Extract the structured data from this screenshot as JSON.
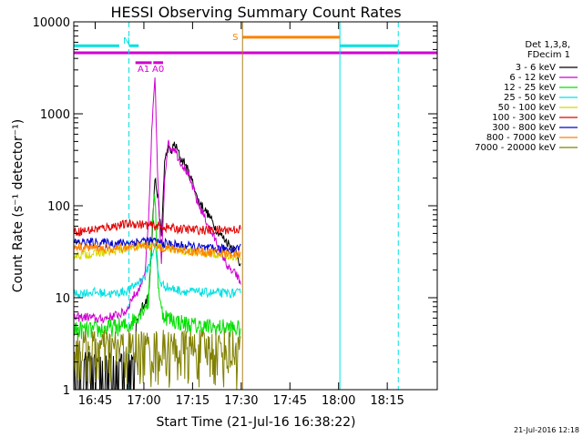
{
  "chart_data": {
    "type": "line",
    "title": "HESSI Observing Summary Count Rates",
    "xlabel": "Start Time (21-Jul-16 16:38:22)",
    "ylabel": "Count Rate (s⁻¹ detector⁻¹)",
    "y_scale": "log",
    "ylim": [
      1,
      10000
    ],
    "xlim_minutes_since_start": [
      0,
      112
    ],
    "grid": false,
    "legend_position": "right",
    "timestamp": "21-Jul-2016 12:18",
    "x_ticks": [
      {
        "label": "16:45",
        "t": 6.6
      },
      {
        "label": "17:00",
        "t": 21.6
      },
      {
        "label": "17:15",
        "t": 36.6
      },
      {
        "label": "17:30",
        "t": 51.6
      },
      {
        "label": "17:45",
        "t": 66.6
      },
      {
        "label": "18:00",
        "t": 81.6
      },
      {
        "label": "18:15",
        "t": 96.6
      }
    ],
    "y_ticks": [
      {
        "label": "1",
        "v": 1
      },
      {
        "label": "10",
        "v": 10
      },
      {
        "label": "100",
        "v": 100
      },
      {
        "label": "1000",
        "v": 1000
      },
      {
        "label": "10000",
        "v": 10000
      }
    ],
    "legend_header": [
      "Det 1,3,8,",
      "FDecim 1"
    ],
    "series": [
      {
        "name": "3 - 6 keV",
        "color": "#000000",
        "points": [
          [
            0,
            1.5
          ],
          [
            8,
            1.4
          ],
          [
            14,
            1.7
          ],
          [
            18,
            3.5
          ],
          [
            20,
            6
          ],
          [
            21,
            8
          ],
          [
            22,
            9
          ],
          [
            23,
            10
          ],
          [
            24,
            40
          ],
          [
            25,
            200
          ],
          [
            26,
            120
          ],
          [
            27,
            45
          ],
          [
            28,
            300
          ],
          [
            29,
            420
          ],
          [
            30,
            380
          ],
          [
            31,
            470
          ],
          [
            32,
            400
          ],
          [
            33,
            320
          ],
          [
            34,
            300
          ],
          [
            35,
            250
          ],
          [
            36,
            200
          ],
          [
            37,
            170
          ],
          [
            38,
            120
          ],
          [
            40,
            95
          ],
          [
            42,
            75
          ],
          [
            44,
            55
          ],
          [
            46,
            45
          ],
          [
            48,
            38
          ],
          [
            50,
            32
          ],
          [
            51.5,
            22
          ]
        ]
      },
      {
        "name": "6 - 12 keV",
        "color": "#d000d0",
        "points": [
          [
            0,
            6
          ],
          [
            4,
            6.2
          ],
          [
            8,
            5.8
          ],
          [
            12,
            6.3
          ],
          [
            16,
            7
          ],
          [
            18,
            10
          ],
          [
            20,
            12
          ],
          [
            22,
            20
          ],
          [
            23,
            60
          ],
          [
            24,
            600
          ],
          [
            25,
            2400
          ],
          [
            26,
            150
          ],
          [
            27,
            22
          ],
          [
            28,
            200
          ],
          [
            29,
            480
          ],
          [
            30,
            420
          ],
          [
            31,
            430
          ],
          [
            32,
            350
          ],
          [
            33,
            300
          ],
          [
            34,
            260
          ],
          [
            35,
            230
          ],
          [
            36,
            180
          ],
          [
            37,
            150
          ],
          [
            38,
            110
          ],
          [
            40,
            80
          ],
          [
            42,
            55
          ],
          [
            44,
            40
          ],
          [
            46,
            28
          ],
          [
            48,
            20
          ],
          [
            50,
            18
          ],
          [
            51.5,
            14
          ]
        ]
      },
      {
        "name": "12 - 25 keV",
        "color": "#00e000",
        "points": [
          [
            0,
            4.5
          ],
          [
            6,
            4.4
          ],
          [
            12,
            4.7
          ],
          [
            17,
            5
          ],
          [
            19,
            6
          ],
          [
            21,
            7.5
          ],
          [
            23,
            9
          ],
          [
            24,
            50
          ],
          [
            25,
            130
          ],
          [
            26,
            15
          ],
          [
            27,
            7
          ],
          [
            29,
            6
          ],
          [
            32,
            5.5
          ],
          [
            36,
            5
          ],
          [
            40,
            4.8
          ],
          [
            44,
            4.7
          ],
          [
            48,
            4.7
          ],
          [
            51.5,
            4.5
          ]
        ]
      },
      {
        "name": "25 - 50 keV",
        "color": "#00e0e0",
        "points": [
          [
            0,
            11
          ],
          [
            6,
            11.5
          ],
          [
            12,
            11
          ],
          [
            17,
            12
          ],
          [
            20,
            15
          ],
          [
            22,
            17
          ],
          [
            24,
            28
          ],
          [
            25,
            38
          ],
          [
            26,
            18
          ],
          [
            27,
            14
          ],
          [
            30,
            12.5
          ],
          [
            34,
            11.8
          ],
          [
            38,
            11.5
          ],
          [
            42,
            11.3
          ],
          [
            46,
            11.2
          ],
          [
            51.5,
            11.2
          ]
        ]
      },
      {
        "name": "50 - 100 keV",
        "color": "#d8d800",
        "points": [
          [
            0,
            29
          ],
          [
            6,
            30
          ],
          [
            12,
            32
          ],
          [
            18,
            35
          ],
          [
            22,
            37
          ],
          [
            26,
            36
          ],
          [
            30,
            34
          ],
          [
            36,
            32
          ],
          [
            42,
            30
          ],
          [
            48,
            29
          ],
          [
            51.5,
            28
          ]
        ]
      },
      {
        "name": "100 - 300 keV",
        "color": "#e00000",
        "points": [
          [
            0,
            52
          ],
          [
            6,
            55
          ],
          [
            12,
            60
          ],
          [
            18,
            64
          ],
          [
            22,
            62
          ],
          [
            26,
            60
          ],
          [
            30,
            57
          ],
          [
            36,
            55
          ],
          [
            42,
            54
          ],
          [
            48,
            55
          ],
          [
            51.5,
            56
          ]
        ]
      },
      {
        "name": "300 - 800 keV",
        "color": "#0000d0",
        "points": [
          [
            0,
            40
          ],
          [
            6,
            40
          ],
          [
            12,
            39
          ],
          [
            18,
            40
          ],
          [
            22,
            42
          ],
          [
            26,
            40
          ],
          [
            30,
            38
          ],
          [
            36,
            36
          ],
          [
            42,
            34
          ],
          [
            48,
            34
          ],
          [
            51.5,
            35
          ]
        ]
      },
      {
        "name": "800 - 7000 keV",
        "color": "#ff8000",
        "points": [
          [
            0,
            36
          ],
          [
            6,
            35
          ],
          [
            12,
            34
          ],
          [
            18,
            36
          ],
          [
            22,
            37
          ],
          [
            26,
            36
          ],
          [
            30,
            34
          ],
          [
            36,
            32
          ],
          [
            42,
            31
          ],
          [
            48,
            30
          ],
          [
            51.5,
            30
          ]
        ]
      },
      {
        "name": "7000 - 20000 keV",
        "color": "#808000",
        "points": [
          [
            0,
            2.5
          ],
          [
            6,
            2.6
          ],
          [
            12,
            2.8
          ],
          [
            18,
            2.7
          ],
          [
            24,
            2.8
          ],
          [
            30,
            2.7
          ],
          [
            36,
            2.6
          ],
          [
            42,
            2.6
          ],
          [
            48,
            2.5
          ],
          [
            51.5,
            2.5
          ]
        ]
      }
    ],
    "flag_bars": [
      {
        "label": "N",
        "color": "#00e0e0",
        "level": 5500,
        "segments": [
          [
            0,
            14
          ],
          [
            17,
            20
          ],
          [
            82,
            100
          ]
        ]
      },
      {
        "label": "S",
        "color": "#ff8000",
        "level": 6800,
        "segments": [
          [
            52,
            82
          ]
        ]
      },
      {
        "label": "",
        "color": "#d000d0",
        "level": 4600,
        "segments": [
          [
            0,
            112
          ]
        ]
      },
      {
        "label": "A1",
        "color": "#d000d0",
        "level": 3600,
        "segments": [
          [
            19,
            24
          ]
        ]
      },
      {
        "label": "A0",
        "color": "#d000d0",
        "level": 3600,
        "segments": [
          [
            24.5,
            27.5
          ]
        ]
      }
    ],
    "vertical_markers": [
      {
        "t": 17,
        "color": "#00e0e0",
        "style": "dashed"
      },
      {
        "t": 82,
        "color": "#00e0e0",
        "style": "solid"
      },
      {
        "t": 100,
        "color": "#00e0e0",
        "style": "dashed"
      },
      {
        "t": 52,
        "color": "#b08020",
        "style": "solid"
      }
    ]
  }
}
